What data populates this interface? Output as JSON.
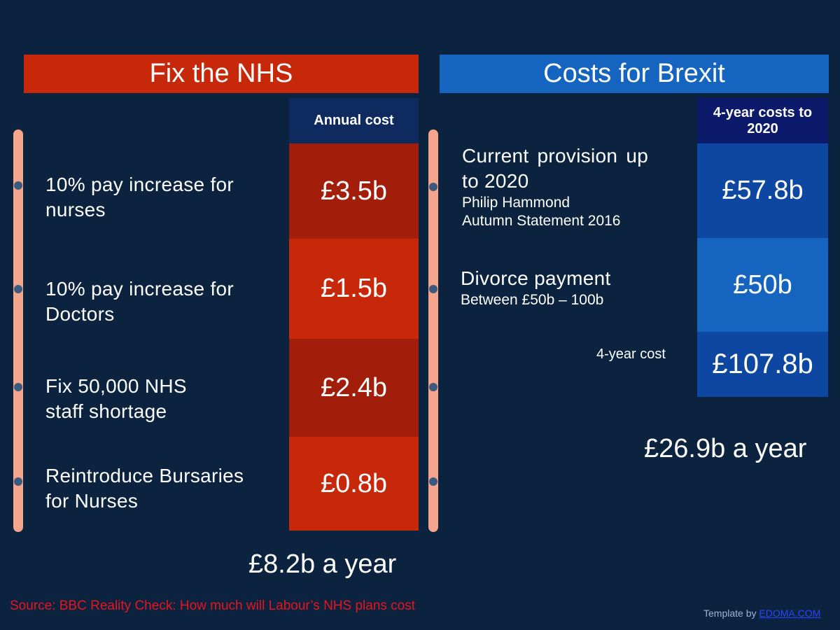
{
  "nhs": {
    "header": "Fix the NHS",
    "column_header": "Annual cost",
    "items": [
      {
        "label_line1": "10% pay increase for",
        "label_line2": "nurses",
        "value": "£3.5b",
        "color": "#a21e0a"
      },
      {
        "label_line1": "10% pay increase for",
        "label_line2": "Doctors",
        "value": "£1.5b",
        "color": "#c8280a"
      },
      {
        "label_line1": "Fix 50,000 NHS",
        "label_line2": "staff shortage",
        "value": "£2.4b",
        "color": "#a21e0a"
      },
      {
        "label_line1": "Reintroduce Bursaries",
        "label_line2": "for Nurses",
        "value": "£0.8b",
        "color": "#c8280a"
      }
    ],
    "total": "£8.2b a year"
  },
  "brexit": {
    "header": "Costs for Brexit",
    "column_header": "4-year costs to 2020",
    "items": [
      {
        "label_line1": "Current provision up",
        "label_line2": "to 2020",
        "sub_line1": "Philip Hammond",
        "sub_line2": "Autumn Statement 2016",
        "value": "£57.8b",
        "color": "#0d47a1"
      },
      {
        "label_line1": "Divorce payment",
        "sub_line1": "Between £50b – 100b",
        "value": "£50b",
        "color": "#1565c0"
      }
    ],
    "total_label": "4-year cost",
    "total_value": "£107.8b",
    "total_color": "#0d47a1",
    "per_year": "£26.9b a year"
  },
  "footer": {
    "source": "Source: BBC Reality Check: How much will Labour’s NHS plans cost",
    "credit_prefix": "Template by",
    "credit_link": "EDOMA.COM"
  },
  "colors": {
    "background": "#0c2340",
    "nhs_accent": "#c8280a",
    "brexit_accent": "#1565c0",
    "timeline": "#f4a58c",
    "source_text": "#e8141e"
  }
}
